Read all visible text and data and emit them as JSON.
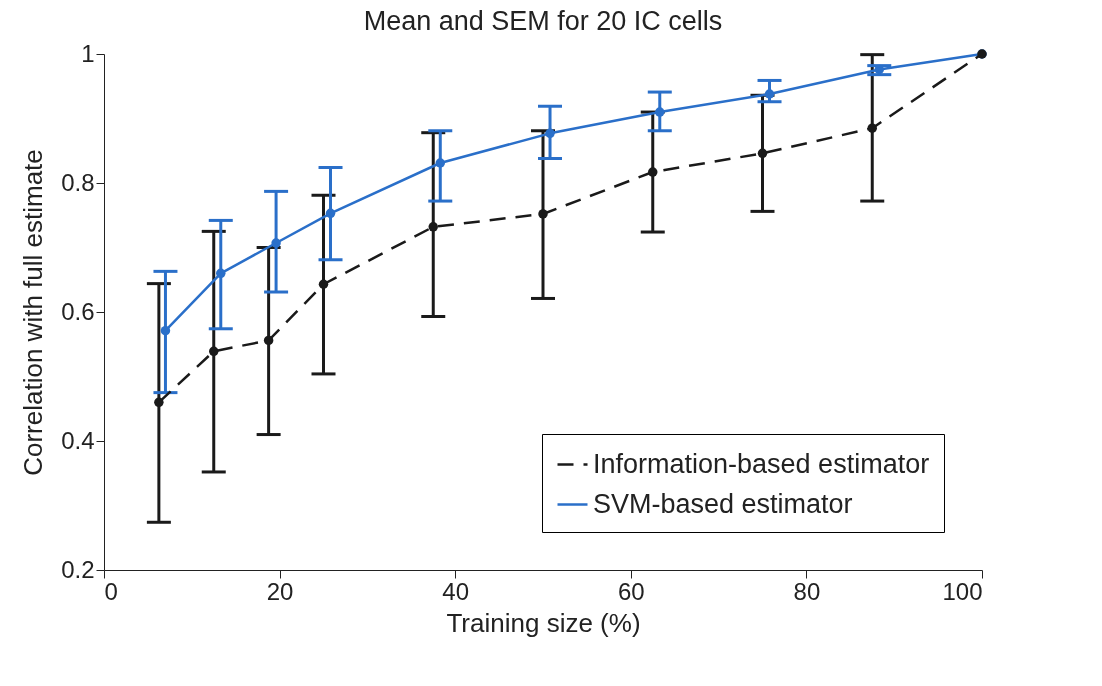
{
  "chart_data": {
    "type": "line",
    "title": "Mean and SEM for 20 IC cells",
    "xlabel": "Training size (%)",
    "ylabel": "Correlation with full estimate",
    "xlim": [
      0,
      100
    ],
    "xticks": [
      0,
      20,
      40,
      60,
      80,
      100
    ],
    "ylim": [
      0.2,
      1
    ],
    "yticks": [
      0.2,
      0.4,
      0.6,
      0.8,
      1
    ],
    "grid": false,
    "legend": "bottom right",
    "marker": "circle",
    "series": [
      {
        "name": "Information-based estimator",
        "color": "#1a1a1a",
        "line_style": "dashed",
        "x": [
          6.25,
          12.5,
          18.75,
          25,
          37.5,
          50,
          62.5,
          75,
          87.5,
          100
        ],
        "values": [
          0.46,
          0.539,
          0.556,
          0.643,
          0.732,
          0.752,
          0.817,
          0.846,
          0.885,
          1.0
        ],
        "errors": [
          [
            0.274,
            0.644
          ],
          [
            0.352,
            0.725
          ],
          [
            0.41,
            0.7
          ],
          [
            0.504,
            0.781
          ],
          [
            0.593,
            0.878
          ],
          [
            0.621,
            0.881
          ],
          [
            0.724,
            0.91
          ],
          [
            0.756,
            0.936
          ],
          [
            0.772,
            0.999
          ],
          null
        ]
      },
      {
        "name": "SVM-based estimator",
        "color": "#2a6fc9",
        "line_style": "solid",
        "x": [
          7,
          13.3,
          19.6,
          25.8,
          38.3,
          50.8,
          63.3,
          75.8,
          88.3,
          100
        ],
        "values": [
          0.571,
          0.66,
          0.707,
          0.753,
          0.831,
          0.877,
          0.91,
          0.938,
          0.976,
          1.0
        ],
        "errors": [
          [
            0.475,
            0.663
          ],
          [
            0.574,
            0.742
          ],
          [
            0.631,
            0.787
          ],
          [
            0.681,
            0.824
          ],
          [
            0.772,
            0.881
          ],
          [
            0.838,
            0.919
          ],
          [
            0.881,
            0.941
          ],
          [
            0.926,
            0.959
          ],
          [
            0.968,
            0.982
          ],
          null
        ]
      }
    ]
  }
}
